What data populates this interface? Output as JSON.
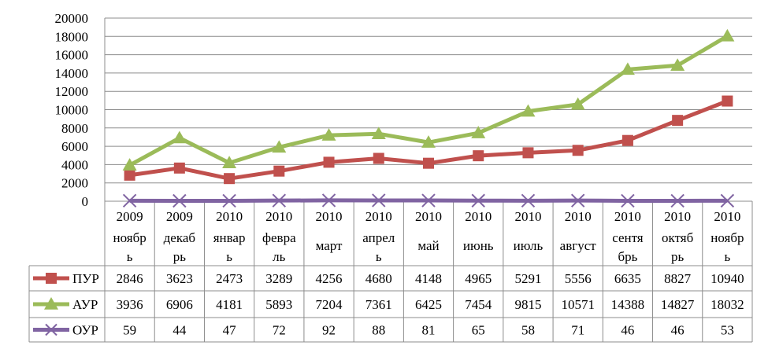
{
  "chart_data": {
    "type": "line",
    "title": "",
    "xlabel": "",
    "ylabel": "",
    "ylim": [
      0,
      20000
    ],
    "yticks": [
      0,
      2000,
      4000,
      6000,
      8000,
      10000,
      12000,
      14000,
      16000,
      18000,
      20000
    ],
    "grid": "horizontal",
    "legend": "data-table-left",
    "categories": [
      {
        "year": "2009",
        "month": [
          "ноябр",
          "ь"
        ]
      },
      {
        "year": "2009",
        "month": [
          "декаб",
          "рь"
        ]
      },
      {
        "year": "2010",
        "month": [
          "январ",
          "ь"
        ]
      },
      {
        "year": "2010",
        "month": [
          "февра",
          "ль"
        ]
      },
      {
        "year": "2010",
        "month": [
          "март"
        ]
      },
      {
        "year": "2010",
        "month": [
          "апрел",
          "ь"
        ]
      },
      {
        "year": "2010",
        "month": [
          "май"
        ]
      },
      {
        "year": "2010",
        "month": [
          "июнь"
        ]
      },
      {
        "year": "2010",
        "month": [
          "июль"
        ]
      },
      {
        "year": "2010",
        "month": [
          "август"
        ]
      },
      {
        "year": "2010",
        "month": [
          "сентя",
          "брь"
        ]
      },
      {
        "year": "2010",
        "month": [
          "октяб",
          "рь"
        ]
      },
      {
        "year": "2010",
        "month": [
          "ноябр",
          "ь"
        ]
      }
    ],
    "series": [
      {
        "name": "ПУР",
        "color": "#c0504d",
        "marker": "square",
        "values": [
          2846,
          3623,
          2473,
          3289,
          4256,
          4680,
          4148,
          4965,
          5291,
          5556,
          6635,
          8827,
          10940
        ]
      },
      {
        "name": "АУР",
        "color": "#9bbb59",
        "marker": "triangle",
        "values": [
          3936,
          6906,
          4181,
          5893,
          7204,
          7361,
          6425,
          7454,
          9815,
          10571,
          14388,
          14827,
          18032
        ]
      },
      {
        "name": "ОУР",
        "color": "#8064a2",
        "marker": "x",
        "values": [
          59,
          44,
          47,
          72,
          92,
          88,
          81,
          65,
          58,
          71,
          46,
          46,
          53
        ]
      }
    ]
  }
}
